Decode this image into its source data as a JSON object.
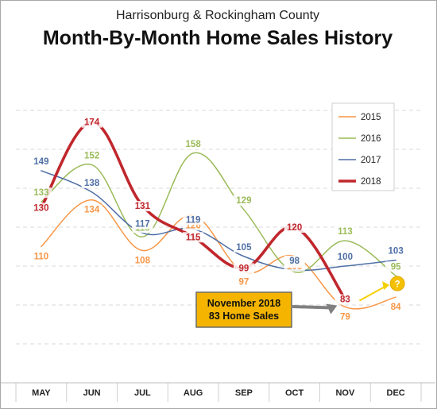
{
  "header": {
    "subtitle": "Harrisonburg & Rockingham County",
    "title": "Month-By-Month Home Sales History"
  },
  "chart_data": {
    "type": "line",
    "title": "Month-By-Month Home Sales History",
    "subtitle": "Harrisonburg & Rockingham County",
    "categories": [
      "MAY",
      "JUN",
      "JUL",
      "AUG",
      "SEP",
      "OCT",
      "NOV",
      "DEC"
    ],
    "ylim": [
      40,
      200
    ],
    "grid": true,
    "legend_position": "right",
    "series": [
      {
        "name": "2015",
        "color": "#f79646",
        "style": "dashed",
        "values": [
          110,
          134,
          108,
          126,
          97,
          105,
          79,
          84
        ]
      },
      {
        "name": "2016",
        "color": "#9bbb59",
        "style": "dashed",
        "values": [
          133,
          152,
          115,
          158,
          129,
          97,
          113,
          95
        ]
      },
      {
        "name": "2017",
        "color": "#4f6fa6",
        "style": "dashed",
        "values": [
          149,
          138,
          117,
          119,
          105,
          98,
          100,
          103
        ]
      },
      {
        "name": "2018",
        "color": "#c0272d",
        "style": "solid",
        "values": [
          130,
          174,
          131,
          115,
          99,
          120,
          83,
          null
        ]
      }
    ],
    "annotations": {
      "callout_line1": "November 2018",
      "callout_line2": "83 Home Sales",
      "question_mark": "?"
    }
  }
}
